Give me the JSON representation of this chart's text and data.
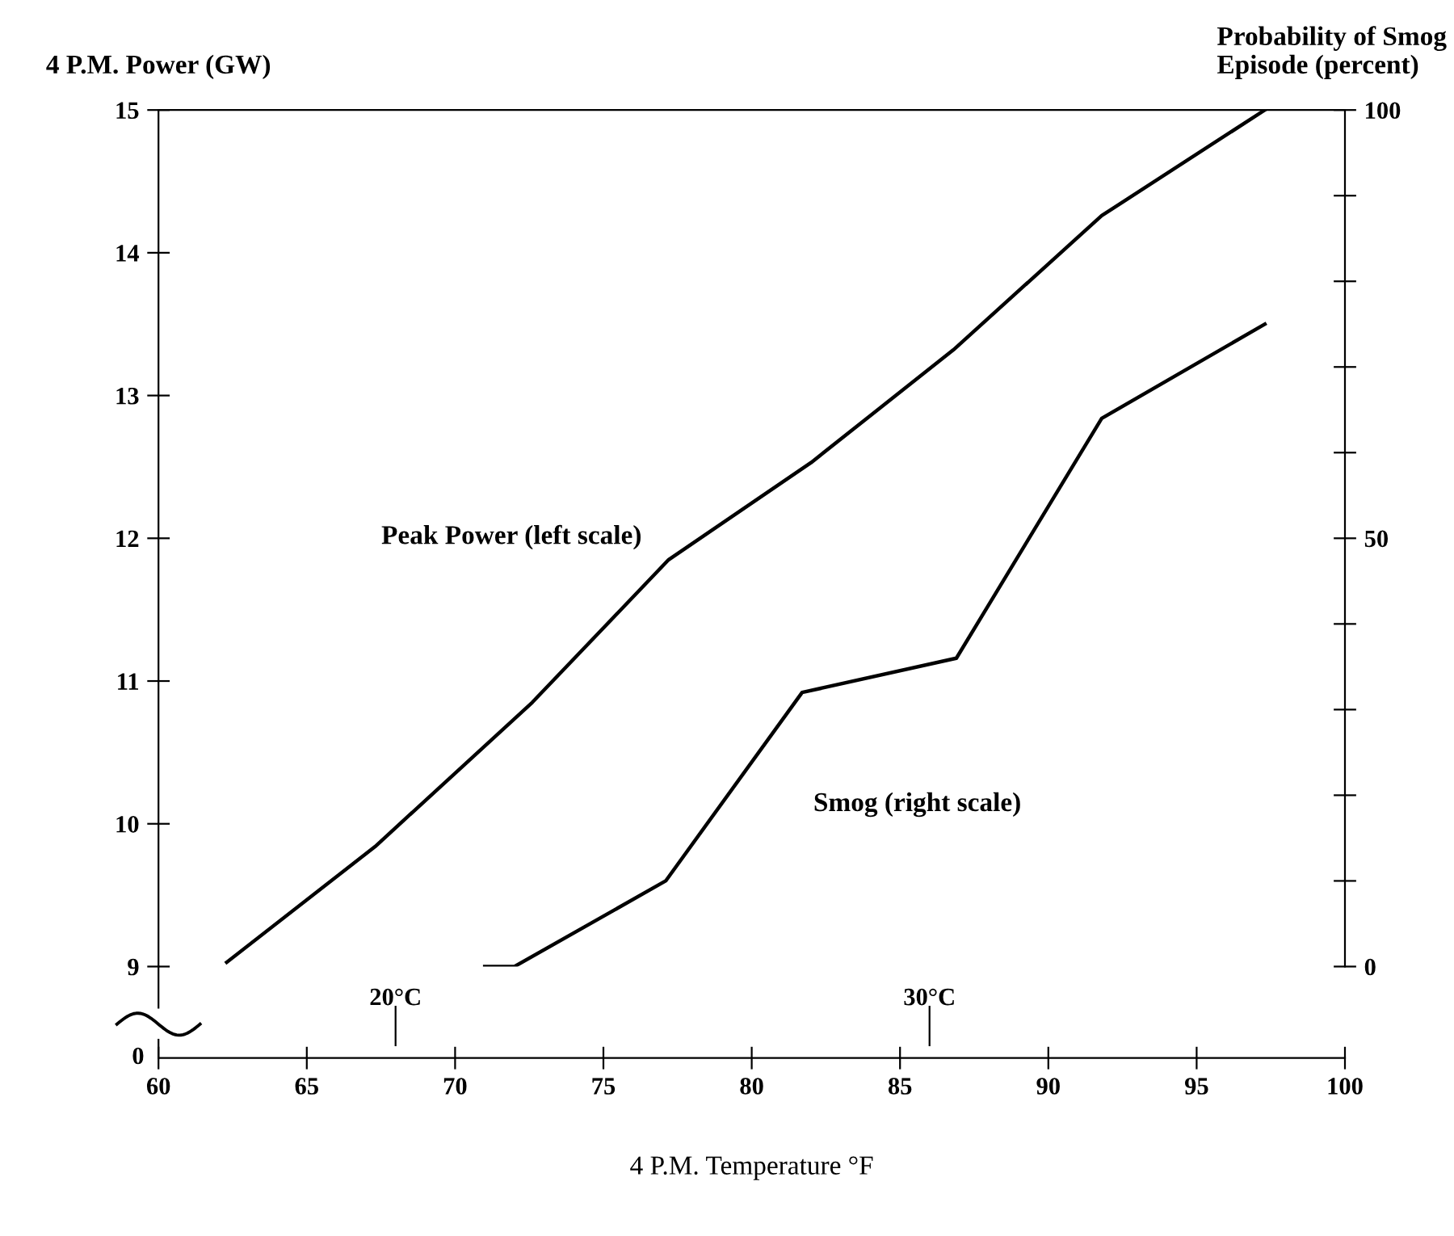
{
  "chart_data": {
    "type": "line",
    "xlabel": "4 P.M. Temperature °F",
    "ylabel": "4 P.M. Power (GW)",
    "y2label": "Probability of Smog\nEpisode (percent)",
    "xlim": [
      60,
      100
    ],
    "xticks": [
      60,
      65,
      70,
      75,
      80,
      85,
      90,
      95,
      100
    ],
    "x2lim": [
      15.56,
      37.78
    ],
    "x2ticks": [
      {
        "value": 20,
        "label": "20°C"
      },
      {
        "value": 30,
        "label": "30°C"
      }
    ],
    "ylim": [
      9,
      15
    ],
    "yticks": [
      9,
      10,
      11,
      12,
      13,
      14,
      15
    ],
    "y2lim": [
      0,
      100
    ],
    "y2ticks": [
      0,
      {
        "value": 10,
        "label": null
      },
      {
        "value": 20,
        "label": null
      },
      {
        "value": 30,
        "label": null
      },
      {
        "value": 40,
        "label": null
      },
      50,
      {
        "value": 60,
        "label": null
      },
      {
        "value": 70,
        "label": null
      },
      {
        "value": 80,
        "label": null
      },
      {
        "value": 90,
        "label": null
      },
      100
    ],
    "series": [
      {
        "name": "Peak Power (left scale)",
        "color": "#000000",
        "x": [
          62.3,
          67.3,
          72.6,
          77.2,
          82.0,
          86.8,
          91.8,
          97.3
        ],
        "values": [
          9.03,
          9.84,
          10.85,
          11.85,
          12.53,
          13.32,
          14.26,
          15.0
        ]
      },
      {
        "name": "Smog (right scale)",
        "color": "#000000",
        "axis": "y2",
        "x": [
          71,
          72.0,
          77.1,
          81.7,
          86.9,
          91.8,
          97.3
        ],
        "values": [
          0,
          0,
          10,
          32,
          36,
          64,
          75
        ]
      }
    ],
    "annotations": [
      "0"
    ],
    "grid": false,
    "legend": false,
    "marker": "none",
    "line_style": "solid"
  }
}
